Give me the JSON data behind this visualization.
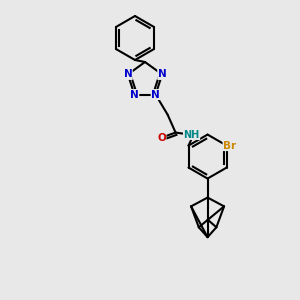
{
  "bg_color": "#e8e8e8",
  "bond_color": "#000000",
  "bond_lw": 1.5,
  "atom_colors": {
    "N": "#0000cc",
    "O": "#cc0000",
    "Br": "#cc8800",
    "H": "#008888",
    "C": "#000000"
  },
  "font_size": 7.5,
  "fig_w": 3.0,
  "fig_h": 3.0
}
